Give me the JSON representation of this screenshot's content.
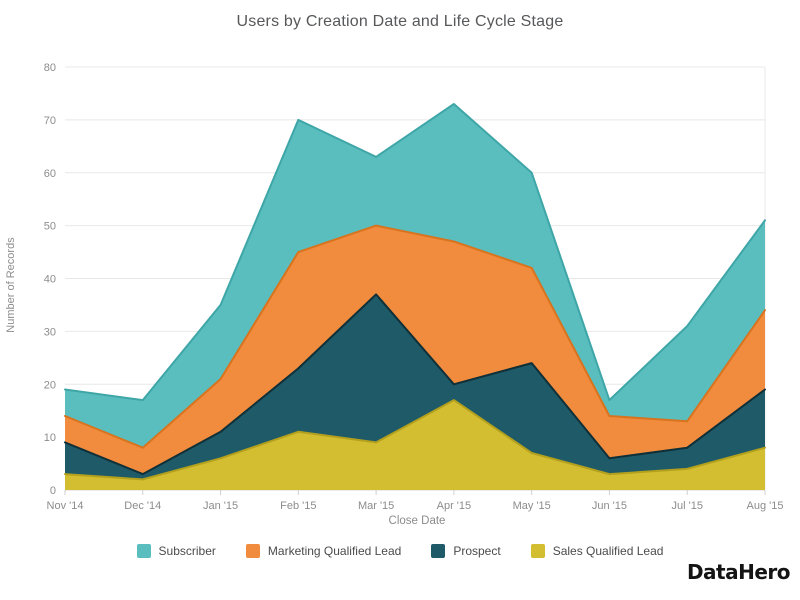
{
  "chart": {
    "title": "Users by Creation Date and Life Cycle Stage",
    "xlabel": "Close Date",
    "ylabel": "Number of Records"
  },
  "chart_data": {
    "type": "area",
    "stacked": true,
    "x": [
      "Nov '14",
      "Dec '14",
      "Jan '15",
      "Feb '15",
      "Mar '15",
      "Apr '15",
      "May '15",
      "Jun '15",
      "Jul '15",
      "Aug '15"
    ],
    "series": [
      {
        "name": "Sales Qualified Lead",
        "color": "#d3bd31",
        "stroke": "#b3a01d",
        "values": [
          3,
          2,
          6,
          11,
          9,
          17,
          7,
          3,
          4,
          8
        ]
      },
      {
        "name": "Prospect",
        "color": "#1f5a68",
        "stroke": "#0f3038",
        "values": [
          6,
          1,
          5,
          12,
          28,
          3,
          17,
          3,
          4,
          11
        ]
      },
      {
        "name": "Marketing Qualified Lead",
        "color": "#f18b3d",
        "stroke": "#d8731e",
        "values": [
          5,
          5,
          10,
          22,
          13,
          27,
          18,
          8,
          5,
          15
        ]
      },
      {
        "name": "Subscriber",
        "color": "#5abdbe",
        "stroke": "#3fa6a8",
        "values": [
          5,
          9,
          14,
          25,
          13,
          26,
          18,
          3,
          18,
          17
        ]
      }
    ],
    "title": "Users by Creation Date and Life Cycle Stage",
    "xlabel": "Close Date",
    "ylabel": "Number of Records",
    "ylim": [
      0,
      80
    ],
    "yticks": [
      0,
      10,
      20,
      30,
      40,
      50,
      60,
      70,
      80
    ],
    "grid": "horizontal",
    "legend_position": "bottom"
  },
  "legend": {
    "items": [
      {
        "label": "Subscriber",
        "color": "#5abdbe"
      },
      {
        "label": "Marketing Qualified Lead",
        "color": "#f18b3d"
      },
      {
        "label": "Prospect",
        "color": "#1f5a68"
      },
      {
        "label": "Sales Qualified Lead",
        "color": "#d3bd31"
      }
    ]
  },
  "footer": {
    "logo_text": "DataHero"
  }
}
